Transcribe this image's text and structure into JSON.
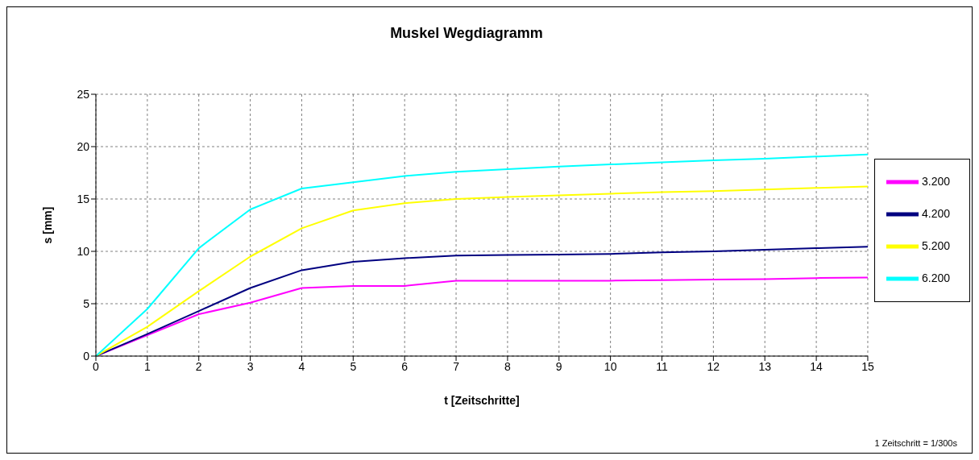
{
  "chart_data": {
    "type": "line",
    "title": "Muskel Wegdiagramm",
    "xlabel": "t [Zeitschritte]",
    "ylabel": "s [mm]",
    "annotations": [
      "1 Zeitschritt = 1/300s"
    ],
    "x": [
      0,
      1,
      2,
      3,
      4,
      5,
      6,
      7,
      8,
      9,
      10,
      11,
      12,
      13,
      14,
      15
    ],
    "xlim": [
      0,
      15
    ],
    "xticks": [
      0,
      1,
      2,
      3,
      4,
      5,
      6,
      7,
      8,
      9,
      10,
      11,
      12,
      13,
      14,
      15
    ],
    "ylim": [
      0,
      25
    ],
    "yticks": [
      0,
      5,
      10,
      15,
      20,
      25
    ],
    "grid": true,
    "legend": "right",
    "marker": "none",
    "line_style": "solid",
    "series": [
      {
        "name": "3.200",
        "color": "#ff00ff",
        "values": [
          0,
          2.0,
          4.0,
          5.1,
          6.5,
          6.7,
          6.7,
          7.2,
          7.2,
          7.2,
          7.2,
          7.25,
          7.3,
          7.35,
          7.45,
          7.5
        ]
      },
      {
        "name": "4.200",
        "color": "#000080",
        "values": [
          0,
          2.1,
          4.3,
          6.5,
          8.2,
          9.0,
          9.35,
          9.6,
          9.65,
          9.7,
          9.75,
          9.9,
          10.0,
          10.15,
          10.3,
          10.45
        ]
      },
      {
        "name": "5.200",
        "color": "#ffff00",
        "values": [
          0,
          2.8,
          6.2,
          9.5,
          12.2,
          13.9,
          14.6,
          15.0,
          15.2,
          15.35,
          15.5,
          15.65,
          15.75,
          15.9,
          16.05,
          16.2
        ]
      },
      {
        "name": "6.200",
        "color": "#00ffff",
        "values": [
          0,
          4.5,
          10.3,
          14.0,
          16.0,
          16.6,
          17.2,
          17.6,
          17.85,
          18.1,
          18.3,
          18.5,
          18.7,
          18.85,
          19.05,
          19.25
        ]
      }
    ]
  }
}
